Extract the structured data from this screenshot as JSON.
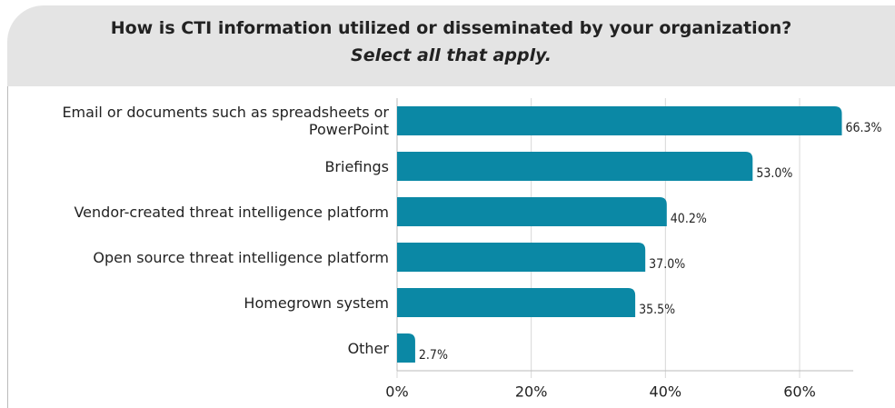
{
  "chart_data": {
    "type": "bar",
    "orientation": "horizontal",
    "title": "How is CTI information utilized or disseminated by your organization?",
    "subtitle": "Select all that apply.",
    "categories": [
      "Email or documents such as spreadsheets or PowerPoint",
      "Briefings",
      "Vendor-created threat intelligence platform",
      "Open source threat intelligence platform",
      "Homegrown system",
      "Other"
    ],
    "values": [
      66.3,
      53.0,
      40.2,
      37.0,
      35.5,
      2.7
    ],
    "value_labels": [
      "66.3%",
      "53.0%",
      "40.2%",
      "37.0%",
      "35.5%",
      "2.7%"
    ],
    "color": "#0b88a5",
    "xlim": [
      0,
      68
    ],
    "xticks": [
      {
        "value": 0,
        "label": "0%"
      },
      {
        "value": 20,
        "label": "20%"
      },
      {
        "value": 40,
        "label": "40%"
      },
      {
        "value": 60,
        "label": "60%"
      }
    ],
    "grid": true
  }
}
